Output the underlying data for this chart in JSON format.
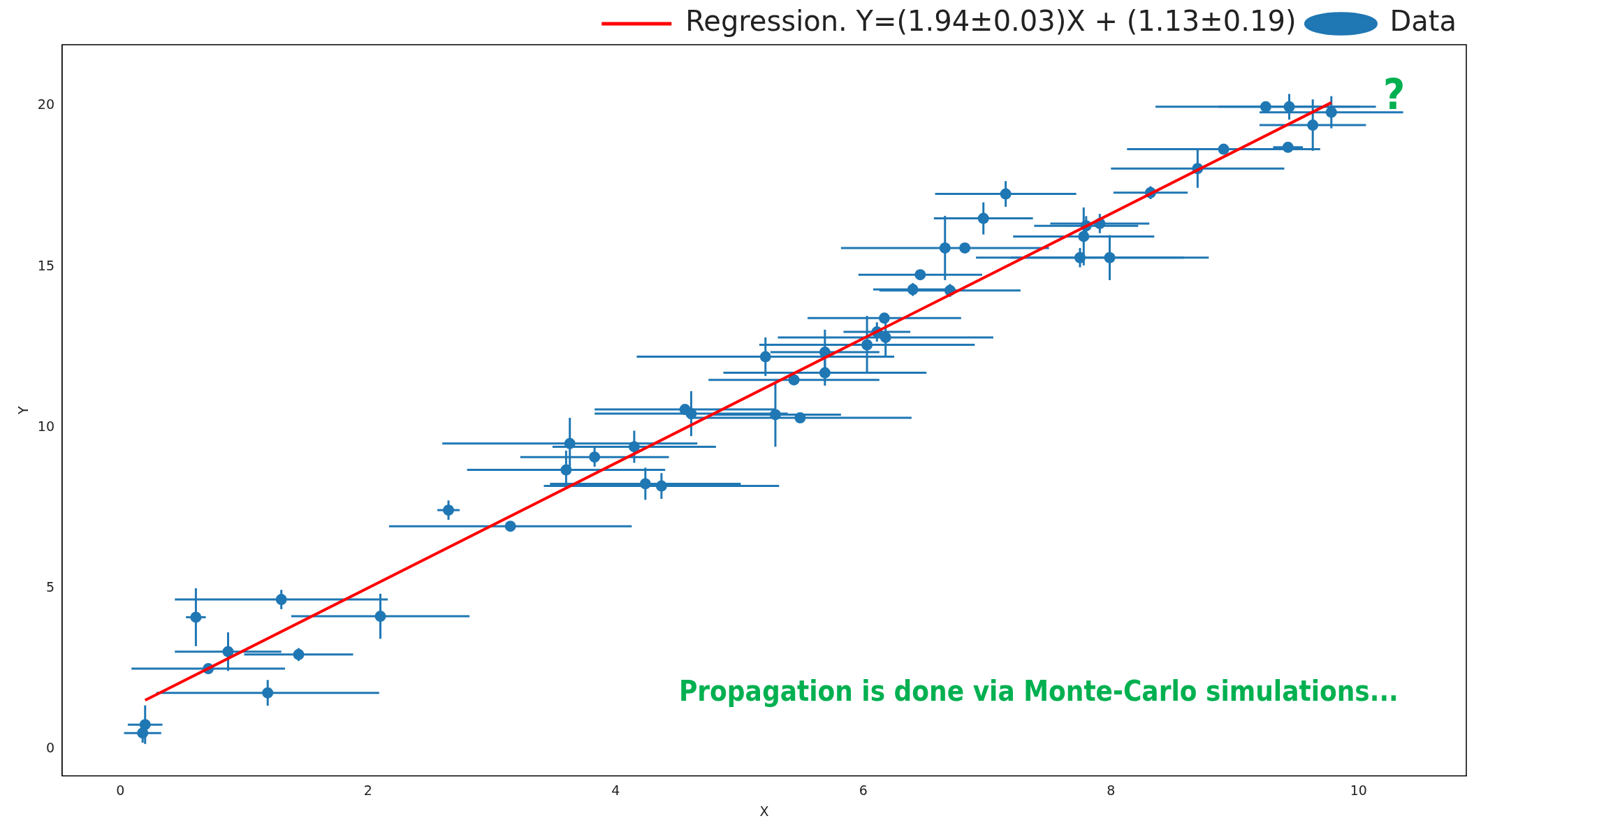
{
  "chart_data": {
    "type": "scatter",
    "xlabel": "X",
    "ylabel": "Y",
    "xlim": [
      -0.47,
      10.87
    ],
    "ylim": [
      -0.83,
      21.9
    ],
    "xticks": [
      0,
      2,
      4,
      6,
      8,
      10
    ],
    "yticks": [
      0,
      5,
      10,
      15,
      20
    ],
    "grid": false,
    "legend": "top right",
    "marker": "circle",
    "annotations": [
      "Propagation is done via Monte-Carlo simulations...",
      "?"
    ],
    "series": [
      {
        "name": "Regression. Y=(1.94±0.03)X + (1.13±0.19)",
        "type": "line",
        "color": "#ff0000",
        "marker": "none",
        "line_style": "solid",
        "x": [
          0.2,
          9.78
        ],
        "values": [
          1.52,
          20.1
        ]
      },
      {
        "name": "Data",
        "color": "#1f77b4",
        "x": [
          0.2,
          0.18,
          0.71,
          0.61,
          0.87,
          1.19,
          1.3,
          1.44,
          2.1,
          2.65,
          3.15,
          3.63,
          3.6,
          3.83,
          4.15,
          4.24,
          4.37,
          4.56,
          4.61,
          5.29,
          5.49,
          5.21,
          5.44,
          5.69,
          5.69,
          6.03,
          6.11,
          6.17,
          6.18,
          6.46,
          6.4,
          6.7,
          6.66,
          6.82,
          6.97,
          7.15,
          7.75,
          7.78,
          7.8,
          7.91,
          7.99,
          8.32,
          8.7,
          8.91,
          9.25,
          9.43,
          9.44,
          9.63,
          9.78
        ],
        "values": [
          0.76,
          0.5,
          2.5,
          4.1,
          3.03,
          1.75,
          4.65,
          2.94,
          4.13,
          7.43,
          6.93,
          9.5,
          8.68,
          9.08,
          9.4,
          8.25,
          8.18,
          10.56,
          10.43,
          10.4,
          10.3,
          12.2,
          11.48,
          12.34,
          11.7,
          12.57,
          12.97,
          13.4,
          12.8,
          14.75,
          14.29,
          14.26,
          15.58,
          15.58,
          16.5,
          17.26,
          15.28,
          15.94,
          16.27,
          16.34,
          15.28,
          17.3,
          18.05,
          18.65,
          19.97,
          18.71,
          19.97,
          19.4,
          19.8
        ],
        "xerrors": [
          0.14,
          0.15,
          0.62,
          0.08,
          0.43,
          0.9,
          0.86,
          0.44,
          0.72,
          0.09,
          0.98,
          1.03,
          0.8,
          0.6,
          0.66,
          0.77,
          0.95,
          0.73,
          0.78,
          0.53,
          0.9,
          1.04,
          0.69,
          0.44,
          0.82,
          0.87,
          0.27,
          0.62,
          0.87,
          0.5,
          0.32,
          0.57,
          0.84,
          null,
          0.4,
          0.57,
          0.84,
          0.57,
          0.42,
          0.4,
          0.8,
          0.3,
          0.7,
          0.78,
          0.89,
          0.12,
          0.57,
          0.43,
          0.58
        ],
        "errors": [
          0.6,
          0.3,
          null,
          0.9,
          0.6,
          0.4,
          0.3,
          0.2,
          0.7,
          0.3,
          null,
          0.8,
          0.6,
          0.3,
          0.5,
          0.5,
          0.4,
          null,
          0.7,
          1.0,
          null,
          0.6,
          null,
          0.7,
          0.4,
          0.9,
          0.3,
          null,
          0.6,
          null,
          0.2,
          0.2,
          1.0,
          null,
          0.5,
          0.4,
          0.3,
          0.9,
          0.3,
          0.3,
          0.7,
          0.2,
          0.6,
          null,
          null,
          null,
          0.4,
          0.8,
          0.5
        ]
      }
    ]
  }
}
